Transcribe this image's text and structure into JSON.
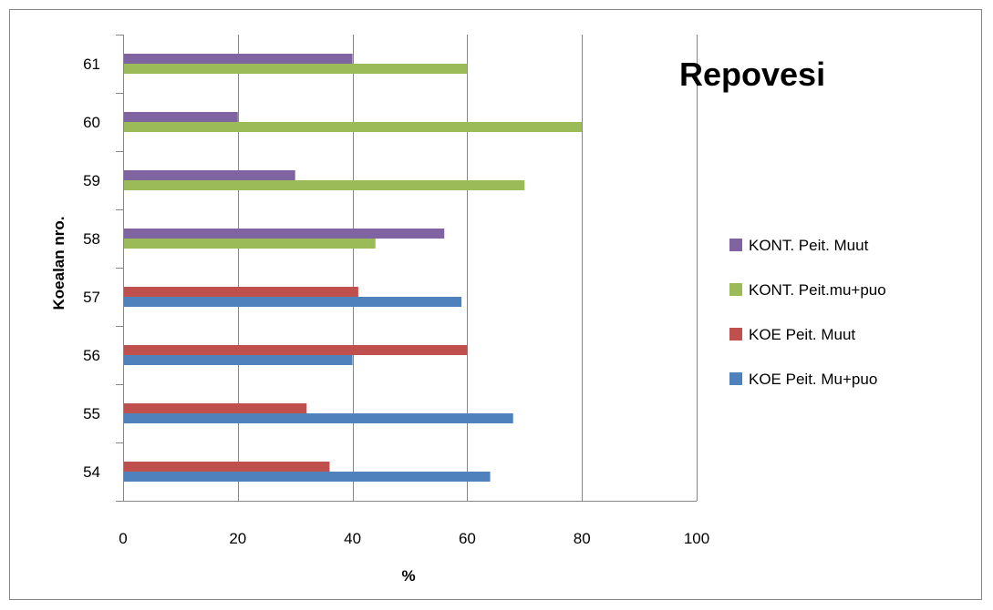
{
  "chart_data": {
    "type": "bar",
    "orientation": "horizontal",
    "title": "Repovesi",
    "xlabel": "%",
    "ylabel": "Koealan nro.",
    "xlim": [
      0,
      100
    ],
    "xticks": [
      0,
      20,
      40,
      60,
      80,
      100
    ],
    "grid": "vertical",
    "legend_position": "right",
    "categories": [
      "54",
      "55",
      "56",
      "57",
      "58",
      "59",
      "60",
      "61"
    ],
    "series": [
      {
        "name": "KOE Peit. Mu+puo",
        "color": "#4F81BD",
        "values": [
          64,
          68,
          40,
          59,
          null,
          null,
          null,
          null
        ]
      },
      {
        "name": "KOE Peit. Muut",
        "color": "#C0504D",
        "values": [
          36,
          32,
          60,
          41,
          null,
          null,
          null,
          null
        ]
      },
      {
        "name": "KONT. Peit.mu+puo",
        "color": "#9BBB59",
        "values": [
          null,
          null,
          null,
          null,
          44,
          70,
          80,
          60
        ]
      },
      {
        "name": "KONT. Peit. Muut",
        "color": "#8064A2",
        "values": [
          null,
          null,
          null,
          null,
          56,
          30,
          20,
          40
        ]
      }
    ]
  }
}
